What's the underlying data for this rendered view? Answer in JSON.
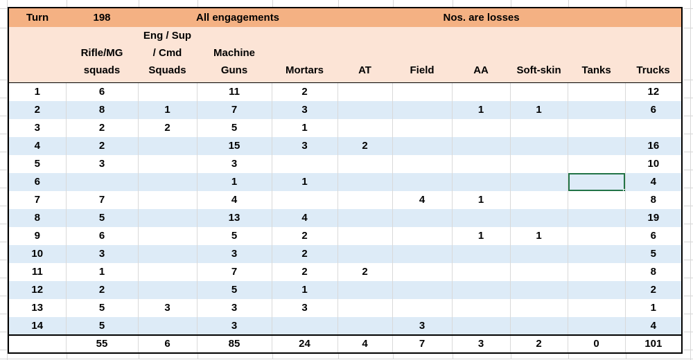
{
  "table": {
    "title_row": {
      "turn_label": "Turn",
      "turn_value": "198",
      "left_title": "All engagements",
      "right_title": "Nos. are losses"
    },
    "columns": [
      {
        "name": "turn",
        "label": ""
      },
      {
        "name": "rifle-mg-squads",
        "label": "Rifle/MG\nsquads"
      },
      {
        "name": "eng-sup-cmd-squads",
        "label": "Eng / Sup\n/ Cmd\nSquads"
      },
      {
        "name": "machine-guns",
        "label": "Machine\nGuns"
      },
      {
        "name": "mortars",
        "label": "Mortars"
      },
      {
        "name": "at",
        "label": "AT"
      },
      {
        "name": "field",
        "label": "Field"
      },
      {
        "name": "aa",
        "label": "AA"
      },
      {
        "name": "soft-skin",
        "label": "Soft-skin"
      },
      {
        "name": "tanks",
        "label": "Tanks"
      },
      {
        "name": "trucks",
        "label": "Trucks"
      }
    ],
    "rows": [
      [
        "1",
        "6",
        "",
        "11",
        "2",
        "",
        "",
        "",
        "",
        "",
        "12"
      ],
      [
        "2",
        "8",
        "1",
        "7",
        "3",
        "",
        "",
        "1",
        "1",
        "",
        "6"
      ],
      [
        "3",
        "2",
        "2",
        "5",
        "1",
        "",
        "",
        "",
        "",
        "",
        ""
      ],
      [
        "4",
        "2",
        "",
        "15",
        "3",
        "2",
        "",
        "",
        "",
        "",
        "16"
      ],
      [
        "5",
        "3",
        "",
        "3",
        "",
        "",
        "",
        "",
        "",
        "",
        "10"
      ],
      [
        "6",
        "",
        "",
        "1",
        "1",
        "",
        "",
        "",
        "",
        "",
        "4"
      ],
      [
        "7",
        "7",
        "",
        "4",
        "",
        "",
        "4",
        "1",
        "",
        "",
        "8"
      ],
      [
        "8",
        "5",
        "",
        "13",
        "4",
        "",
        "",
        "",
        "",
        "",
        "19"
      ],
      [
        "9",
        "6",
        "",
        "5",
        "2",
        "",
        "",
        "1",
        "1",
        "",
        "6"
      ],
      [
        "10",
        "3",
        "",
        "3",
        "2",
        "",
        "",
        "",
        "",
        "",
        "5"
      ],
      [
        "11",
        "1",
        "",
        "7",
        "2",
        "2",
        "",
        "",
        "",
        "",
        "8"
      ],
      [
        "12",
        "2",
        "",
        "5",
        "1",
        "",
        "",
        "",
        "",
        "",
        "2"
      ],
      [
        "13",
        "5",
        "3",
        "3",
        "3",
        "",
        "",
        "",
        "",
        "",
        "1"
      ],
      [
        "14",
        "5",
        "",
        "3",
        "",
        "",
        "3",
        "",
        "",
        "",
        "4"
      ]
    ],
    "totals": [
      "",
      "55",
      "6",
      "85",
      "24",
      "4",
      "7",
      "3",
      "2",
      "0",
      "101"
    ],
    "selection": {
      "row_index": 5,
      "col_index": 9
    }
  },
  "colors": {
    "title_fill": "#F4B183",
    "header_fill": "#FCE4D6",
    "stripe_fill": "#DDEBF7",
    "selection_green": "#217346",
    "gridline": "#D6D6D6"
  }
}
